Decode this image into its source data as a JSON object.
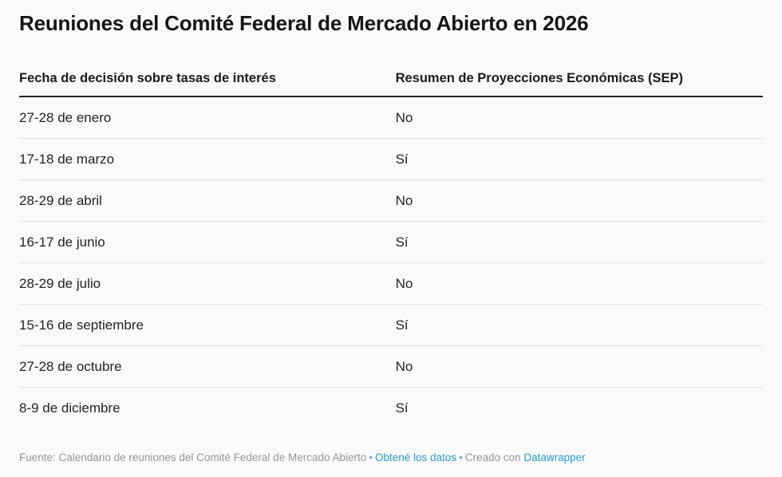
{
  "title": "Reuniones del Comité Federal de Mercado Abierto en 2026",
  "colors": {
    "background": "#fafafa",
    "header_rule": "#252525",
    "row_divider": "#e1e1e1",
    "link_blue": "#2b9ad3",
    "footer_gray": "#979797"
  },
  "chart_data": {
    "type": "table",
    "title": "Reuniones del Comité Federal de Mercado Abierto en 2026",
    "columns": [
      "Fecha de decisión sobre tasas de interés",
      "Resumen de Proyecciones Económicas (SEP)"
    ],
    "rows": [
      {
        "fecha": "27-28 de enero",
        "sep": "No"
      },
      {
        "fecha": "17-18 de marzo",
        "sep": "Sí"
      },
      {
        "fecha": "28-29 de abril",
        "sep": "No"
      },
      {
        "fecha": "16-17 de junio",
        "sep": "Sí"
      },
      {
        "fecha": "28-29 de julio",
        "sep": "No"
      },
      {
        "fecha": "15-16 de septiembre",
        "sep": "Sí"
      },
      {
        "fecha": "27-28 de octubre",
        "sep": "No"
      },
      {
        "fecha": "8-9 de diciembre",
        "sep": "Sí"
      }
    ]
  },
  "footer": {
    "source_text": "Fuente: Calendario de reuniones del Comité Federal de Mercado Abierto",
    "separator": "•",
    "get_data_link": "Obtené los datos",
    "created_with": "Creado con",
    "datawrapper_link": "Datawrapper"
  }
}
